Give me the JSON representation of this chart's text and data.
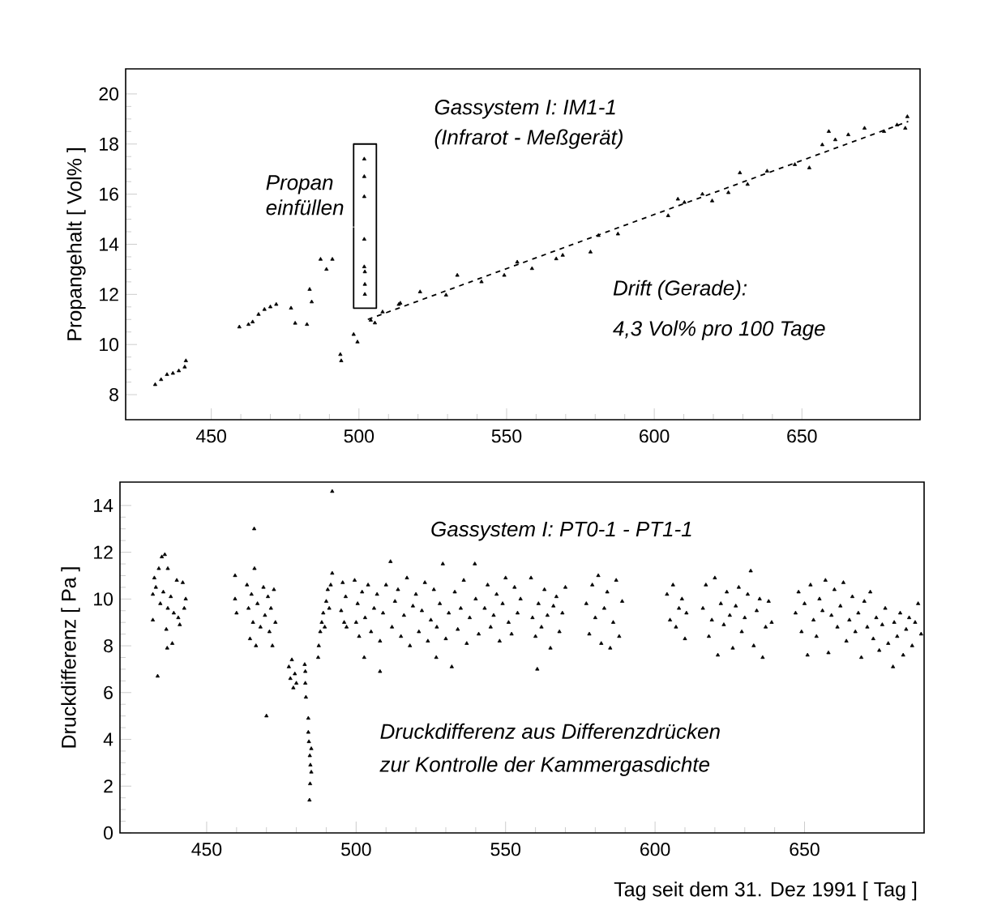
{
  "chart_data": [
    {
      "type": "scatter",
      "title": "Gassystem I:  IM1-1",
      "subtitle": "(Infrarot - Meßgerät)",
      "ylabel": "Propangehalt [ Vol% ]",
      "annotations": [
        "Propan einfüllen",
        "Drift (Gerade):",
        "4,3 Vol% pro 100 Tage"
      ],
      "xlim": [
        421,
        690
      ],
      "ylim": [
        7,
        21
      ],
      "xticks": [
        450,
        500,
        550,
        600,
        650
      ],
      "yticks": [
        8,
        10,
        12,
        14,
        16,
        18,
        20
      ],
      "marker": "triangle",
      "series": [
        {
          "color": "#000000",
          "x": [
            431,
            433,
            435,
            437,
            439,
            441,
            441.4,
            459.5,
            462.6,
            464,
            466,
            468,
            470,
            472,
            477,
            478.4,
            482.4,
            483.3,
            484,
            487,
            489,
            491,
            493.7,
            494,
            498.2,
            499.5,
            501.8,
            501.8,
            501.8,
            501.8,
            501.8,
            502,
            502,
            502,
            504,
            505.4,
            508,
            513.5,
            514,
            520.7,
            529.5,
            533.3,
            541.5,
            549.2,
            553.6,
            558.6,
            566.8,
            569,
            578.4,
            581.1,
            587.7,
            604.7,
            608,
            610.2,
            616.3,
            619.6,
            625.1,
            629,
            631.6,
            638.2,
            647.6,
            652.5,
            656.9,
            659.1,
            661.3,
            665.7,
            671.2,
            677.8,
            682.2,
            685,
            685.7
          ],
          "values": [
            8.4,
            8.6,
            8.8,
            8.85,
            8.95,
            9.1,
            9.35,
            10.7,
            10.8,
            10.9,
            11.2,
            11.4,
            11.5,
            11.6,
            11.45,
            10.85,
            10.8,
            12.2,
            11.7,
            13.4,
            13.0,
            13.4,
            9.6,
            9.35,
            10.4,
            10.1,
            17.4,
            16.7,
            15.9,
            14.2,
            13.1,
            12.9,
            12.4,
            12.0,
            10.97,
            10.86,
            11.3,
            11.6,
            11.65,
            12.1,
            11.97,
            12.76,
            12.5,
            12.76,
            13.29,
            13.03,
            13.42,
            13.56,
            13.69,
            14.35,
            14.41,
            15.14,
            15.8,
            15.67,
            16.0,
            15.73,
            16.06,
            16.85,
            16.39,
            16.92,
            17.18,
            17.05,
            17.97,
            18.5,
            18.17,
            18.37,
            18.63,
            18.5,
            18.76,
            18.63,
            19.09
          ]
        },
        {
          "type": "line",
          "color": "#000000",
          "line_style": "dashed",
          "marker": "none",
          "x": [
            503,
            686
          ],
          "values": [
            11.0,
            18.9
          ]
        },
        {
          "type": "line",
          "color": "#000000",
          "line_style": "solid",
          "marker": "none",
          "x": [
            498.2,
            498.2,
            505.9,
            505.9,
            498.2,
            498.2
          ],
          "values": [
            14.7,
            18.0,
            18.0,
            11.45,
            11.45,
            14.68
          ]
        }
      ]
    },
    {
      "type": "scatter",
      "title": "Gassystem I: PT0-1 - PT1-1",
      "xlabel": "Tag seit dem 31. Dez 1991 [ Tag ]",
      "ylabel": "Druckdifferenz [ Pa ]",
      "annotations": [
        "Druckdifferenz aus Differenzdrücken",
        "zur Kontrolle der Kammergasdichte"
      ],
      "xlim": [
        421,
        690
      ],
      "ylim": [
        0,
        15
      ],
      "xticks": [
        450,
        500,
        550,
        600,
        650
      ],
      "yticks": [
        0,
        2,
        4,
        6,
        8,
        10,
        12,
        14
      ],
      "marker": "triangle",
      "series": [
        {
          "color": "#000000",
          "x": [
            432,
            432,
            432.5,
            433,
            433.6,
            434,
            434.5,
            435,
            435.5,
            436,
            436.5,
            436.8,
            437,
            437,
            438,
            438.5,
            439,
            440,
            440.5,
            441,
            442,
            442.5,
            443,
            459.5,
            459.5,
            460,
            463.5,
            464,
            464.5,
            465,
            465.5,
            465.9,
            466,
            466.5,
            467,
            468,
            469,
            469.5,
            470,
            470.5,
            471,
            471.5,
            472,
            472.5,
            473,
            477.5,
            478,
            478.5,
            479,
            479.5,
            480,
            482.8,
            483,
            483,
            483.2,
            484,
            484,
            484.2,
            484.5,
            484.7,
            485,
            485,
            484.6,
            484.4,
            487.3,
            487.5,
            488,
            488.5,
            489,
            489.5,
            490,
            490.5,
            491,
            491.5,
            492,
            492,
            495,
            495.5,
            496,
            496.5,
            496.8,
            499.5,
            500,
            500.5,
            501,
            502,
            502.7,
            503,
            504,
            505,
            506,
            507,
            508,
            508,
            509,
            510,
            511.5,
            512,
            513,
            514,
            515,
            516,
            517,
            518,
            519,
            520,
            521,
            522,
            523,
            524,
            525,
            526,
            526.8,
            527,
            528,
            529,
            530,
            531,
            532,
            533,
            534,
            535,
            536,
            537,
            538,
            539.7,
            540,
            541,
            543,
            544,
            545,
            546,
            547,
            548,
            549,
            550,
            551,
            552,
            553,
            554,
            555,
            558.5,
            559,
            560,
            560.6,
            561,
            562,
            563,
            564,
            565,
            566,
            567,
            568,
            569,
            570,
            577,
            578,
            579,
            580,
            581,
            582,
            583,
            584,
            585,
            586,
            587,
            588,
            589,
            604,
            605,
            606,
            607,
            608,
            609,
            610,
            610.5,
            616,
            617,
            618,
            619,
            620,
            621,
            622,
            623,
            624,
            625,
            626,
            627,
            628,
            629,
            630,
            631,
            632,
            633,
            634,
            635,
            636,
            637,
            638,
            639,
            647,
            648,
            649,
            650,
            651,
            652,
            653,
            654,
            655,
            656,
            657,
            658,
            659,
            660,
            661,
            662,
            663,
            664,
            665,
            666,
            667,
            668,
            669,
            670,
            671,
            672,
            673,
            674,
            675,
            676,
            677,
            678,
            679.6,
            680,
            681,
            682,
            683,
            684,
            685,
            686,
            687,
            688,
            689
          ],
          "values": [
            10.2,
            9.1,
            10.9,
            10.5,
            6.7,
            11.3,
            9.8,
            11.8,
            10.3,
            11.9,
            8.7,
            7.9,
            9.6,
            11.3,
            10.1,
            8.1,
            9.4,
            10.8,
            9.2,
            8.9,
            10.7,
            9.6,
            10.0,
            11.0,
            10.0,
            9.4,
            10.6,
            9.6,
            8.3,
            10.2,
            9.0,
            13.0,
            11.3,
            8.0,
            9.8,
            8.8,
            10.5,
            9.3,
            5.0,
            10.1,
            8.6,
            9.6,
            8.0,
            10.4,
            9.0,
            7.1,
            6.6,
            7.4,
            6.2,
            6.8,
            6.4,
            7.2,
            6.9,
            6.4,
            5.8,
            4.9,
            4.3,
            3.9,
            3.3,
            2.9,
            3.6,
            2.6,
            2.1,
            1.4,
            7.5,
            8.0,
            8.6,
            9.0,
            9.4,
            8.8,
            9.9,
            10.4,
            9.6,
            10.6,
            11.1,
            14.6,
            9.5,
            10.7,
            9.0,
            10.1,
            8.8,
            10.8,
            9.0,
            9.8,
            8.4,
            10.3,
            7.5,
            9.2,
            10.6,
            8.6,
            9.6,
            10.2,
            6.9,
            8.2,
            9.4,
            10.6,
            11.6,
            8.8,
            9.9,
            10.4,
            8.4,
            9.3,
            10.9,
            8.0,
            9.7,
            10.2,
            8.6,
            9.5,
            10.7,
            8.2,
            9.1,
            10.4,
            7.5,
            8.8,
            9.8,
            11.5,
            8.3,
            9.4,
            7.1,
            10.3,
            8.7,
            9.6,
            10.8,
            8.1,
            9.2,
            11.5,
            10.0,
            8.5,
            9.6,
            10.6,
            8.8,
            9.3,
            10.2,
            8.2,
            9.8,
            10.9,
            9.0,
            8.5,
            10.5,
            9.4,
            10.0,
            10.9,
            9.2,
            8.4,
            7.0,
            9.8,
            8.8,
            10.4,
            9.3,
            7.9,
            9.7,
            10.1,
            8.6,
            9.4,
            10.5,
            9.8,
            8.5,
            10.6,
            9.2,
            11.0,
            8.1,
            9.6,
            10.3,
            7.9,
            9.0,
            10.8,
            8.4,
            9.9,
            10.2,
            9.1,
            10.6,
            8.8,
            9.6,
            10.0,
            8.3,
            9.4,
            9.6,
            10.6,
            8.4,
            9.1,
            10.9,
            7.6,
            9.8,
            8.9,
            10.3,
            9.3,
            7.9,
            9.7,
            10.5,
            8.6,
            9.2,
            10.2,
            11.2,
            8.0,
            9.5,
            10.0,
            7.5,
            8.8,
            9.9,
            9.0,
            9.4,
            10.3,
            8.6,
            9.8,
            7.6,
            10.6,
            9.1,
            8.4,
            10.0,
            9.5,
            10.8,
            7.7,
            9.3,
            10.4,
            8.8,
            9.7,
            10.7,
            8.2,
            9.1,
            10.1,
            8.6,
            9.4,
            7.5,
            9.9,
            8.8,
            10.3,
            8.3,
            9.2,
            7.8,
            8.9,
            9.6,
            8.1,
            7.1,
            9.0,
            8.4,
            9.4,
            7.6,
            8.7,
            9.2,
            8.0,
            9.0,
            9.8,
            8.5
          ]
        }
      ]
    }
  ]
}
